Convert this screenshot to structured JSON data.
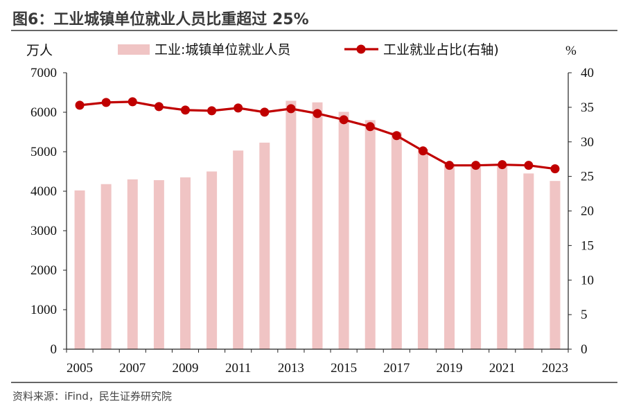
{
  "header": {
    "title": "图6：工业城镇单位就业人员比重超过 25%"
  },
  "footer": {
    "source": "资料来源：iFind，民生证券研究院"
  },
  "colors": {
    "bar": "#f0c4c4",
    "line": "#c00000",
    "axis": "#222222"
  },
  "chart_data": {
    "type": "bar",
    "title": "图6：工业城镇单位就业人员比重超过 25%",
    "x": [
      2005,
      2006,
      2007,
      2008,
      2009,
      2010,
      2011,
      2012,
      2013,
      2014,
      2015,
      2016,
      2017,
      2018,
      2019,
      2020,
      2021,
      2022,
      2023
    ],
    "x_ticks": [
      "2005",
      "2007",
      "2009",
      "2011",
      "2013",
      "2015",
      "2017",
      "2019",
      "2021",
      "2023"
    ],
    "y_left": {
      "unit": "万人",
      "ylim": [
        0,
        7000
      ],
      "ticks": [
        "0",
        "1000",
        "2000",
        "3000",
        "4000",
        "5000",
        "6000",
        "7000"
      ]
    },
    "y_right": {
      "unit": "%",
      "ylim": [
        0,
        40
      ],
      "ticks": [
        "0",
        "5",
        "10",
        "15",
        "20",
        "25",
        "30",
        "35",
        "40"
      ]
    },
    "grid": false,
    "legend_position": "top",
    "series": [
      {
        "name": "工业:城镇单位就业人员",
        "type": "bar",
        "axis": "left",
        "values": [
          4020,
          4180,
          4300,
          4280,
          4350,
          4500,
          5030,
          5230,
          6290,
          6250,
          6010,
          5800,
          5500,
          5070,
          4700,
          4700,
          4680,
          4450,
          4260
        ]
      },
      {
        "name": "工业就业占比(右轴)",
        "type": "line",
        "axis": "right",
        "values": [
          35.3,
          35.7,
          35.8,
          35.1,
          34.6,
          34.5,
          34.9,
          34.3,
          34.8,
          34.1,
          33.2,
          32.2,
          30.9,
          28.7,
          26.6,
          26.6,
          26.7,
          26.6,
          26.1
        ]
      }
    ]
  }
}
